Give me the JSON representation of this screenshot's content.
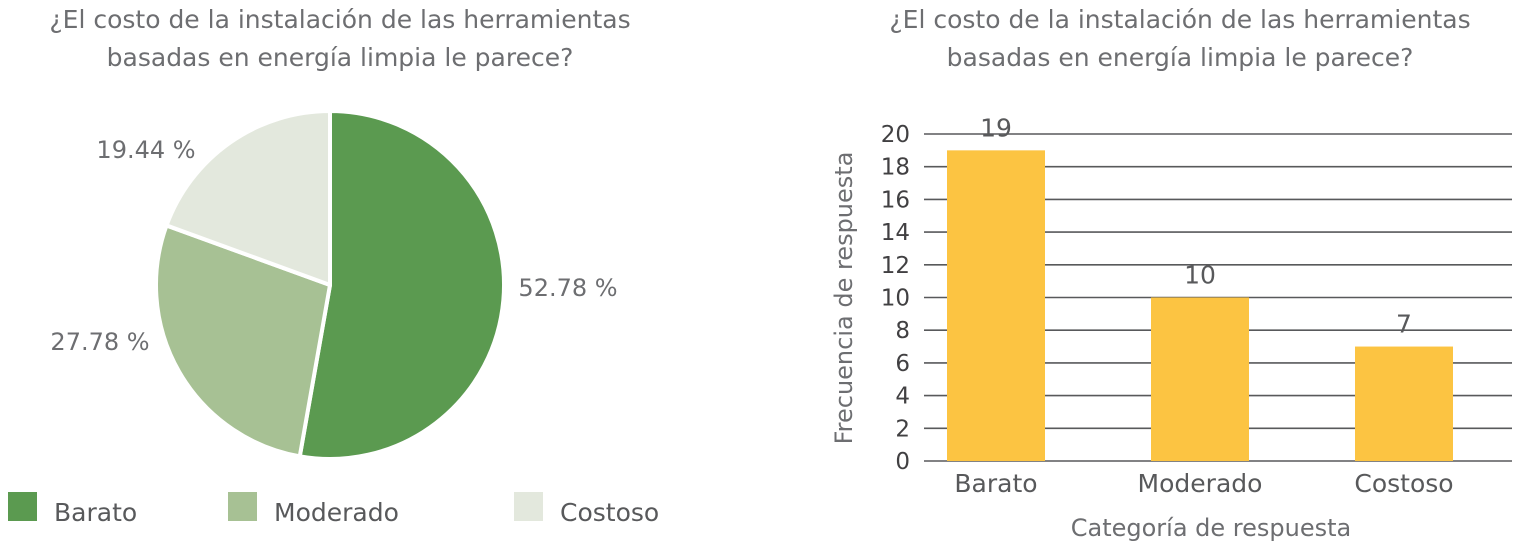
{
  "chart_data": [
    {
      "type": "pie",
      "title_lines": [
        "¿El costo de la instalación de las herramientas",
        "basadas en energía limpia le parece?"
      ],
      "categories": [
        "Barato",
        "Moderado",
        "Costoso"
      ],
      "values": [
        52.78,
        27.78,
        19.44
      ],
      "value_labels": [
        "52.78 %",
        "27.78 %",
        "19.44 %"
      ],
      "colors": [
        "#5b9a50",
        "#a7c194",
        "#e3e8dd"
      ],
      "legend_position": "bottom"
    },
    {
      "type": "bar",
      "title_lines": [
        "¿El costo de la instalación de las herramientas",
        "basadas en energía limpia le parece?"
      ],
      "categories": [
        "Barato",
        "Moderado",
        "Costoso"
      ],
      "values": [
        19,
        10,
        7
      ],
      "xlabel": "Categoría de respuesta",
      "ylabel": "Frecuencia de respuesta",
      "ylim": [
        0,
        20
      ],
      "yticks": [
        0,
        2,
        4,
        6,
        8,
        10,
        12,
        14,
        16,
        18,
        20
      ],
      "bar_color": "#fcc442",
      "grid": true
    }
  ]
}
